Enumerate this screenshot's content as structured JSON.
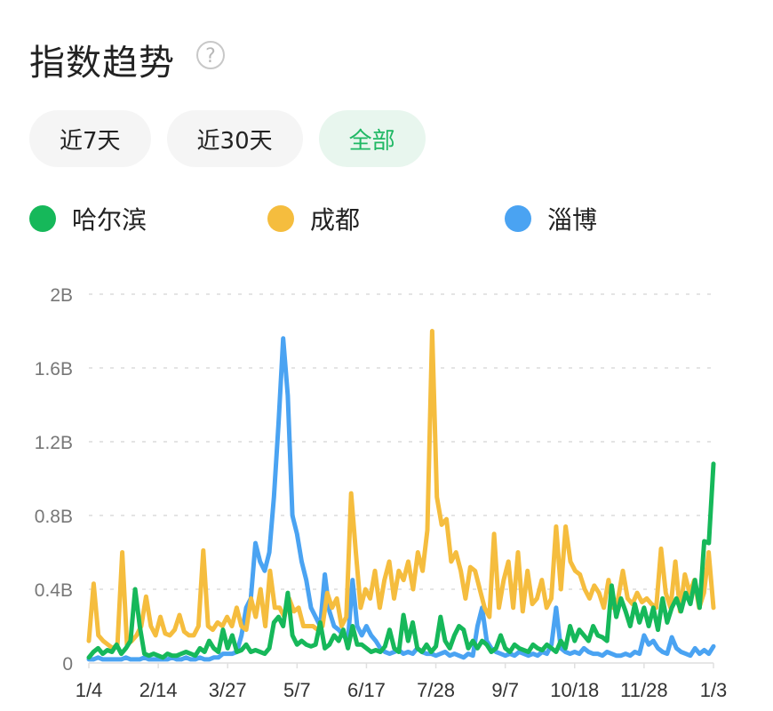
{
  "header": {
    "title": "指数趋势",
    "help_icon": "?"
  },
  "tabs": [
    {
      "label": "近7天",
      "active": false
    },
    {
      "label": "近30天",
      "active": false
    },
    {
      "label": "全部",
      "active": true
    }
  ],
  "legend": [
    {
      "label": "哈尔滨",
      "color": "#16b85a"
    },
    {
      "label": "成都",
      "color": "#f5bd3e"
    },
    {
      "label": "淄博",
      "color": "#4aa3f2"
    }
  ],
  "chart_data": {
    "type": "line",
    "title": "指数趋势",
    "xlabel": "",
    "ylabel": "",
    "ylim": [
      0,
      2000000000
    ],
    "y_ticks": [
      "0",
      "0.4B",
      "0.8B",
      "1.2B",
      "1.6B",
      "2B"
    ],
    "x_ticks": [
      "1/4",
      "2/14",
      "3/27",
      "5/7",
      "6/17",
      "7/28",
      "9/7",
      "10/18",
      "11/28",
      "1/3"
    ],
    "grid": true,
    "legend_position": "top",
    "series": [
      {
        "name": "哈尔滨",
        "color": "#16b85a",
        "values_B": [
          0.03,
          0.06,
          0.08,
          0.05,
          0.07,
          0.06,
          0.1,
          0.05,
          0.08,
          0.12,
          0.4,
          0.2,
          0.05,
          0.04,
          0.05,
          0.04,
          0.03,
          0.05,
          0.04,
          0.04,
          0.05,
          0.06,
          0.05,
          0.04,
          0.08,
          0.06,
          0.12,
          0.08,
          0.06,
          0.18,
          0.08,
          0.15,
          0.06,
          0.07,
          0.1,
          0.06,
          0.07,
          0.06,
          0.05,
          0.08,
          0.22,
          0.25,
          0.2,
          0.38,
          0.15,
          0.1,
          0.12,
          0.1,
          0.09,
          0.1,
          0.22,
          0.08,
          0.1,
          0.15,
          0.12,
          0.18,
          0.08,
          0.2,
          0.1,
          0.1,
          0.08,
          0.06,
          0.07,
          0.06,
          0.09,
          0.18,
          0.08,
          0.06,
          0.26,
          0.12,
          0.22,
          0.08,
          0.06,
          0.1,
          0.06,
          0.09,
          0.25,
          0.12,
          0.08,
          0.15,
          0.2,
          0.18,
          0.08,
          0.12,
          0.08,
          0.12,
          0.1,
          0.06,
          0.08,
          0.15,
          0.08,
          0.06,
          0.1,
          0.08,
          0.07,
          0.06,
          0.1,
          0.08,
          0.07,
          0.1,
          0.08,
          0.06,
          0.12,
          0.08,
          0.2,
          0.12,
          0.18,
          0.15,
          0.12,
          0.2,
          0.15,
          0.14,
          0.12,
          0.42,
          0.25,
          0.35,
          0.28,
          0.2,
          0.32,
          0.22,
          0.3,
          0.2,
          0.3,
          0.18,
          0.35,
          0.22,
          0.3,
          0.35,
          0.28,
          0.38,
          0.32,
          0.45,
          0.3,
          0.66,
          0.65,
          1.08
        ]
      },
      {
        "name": "成都",
        "color": "#f5bd3e",
        "values_B": [
          0.12,
          0.43,
          0.15,
          0.12,
          0.1,
          0.08,
          0.1,
          0.6,
          0.1,
          0.12,
          0.15,
          0.2,
          0.36,
          0.2,
          0.15,
          0.25,
          0.16,
          0.15,
          0.18,
          0.26,
          0.17,
          0.15,
          0.15,
          0.2,
          0.61,
          0.2,
          0.18,
          0.22,
          0.2,
          0.25,
          0.2,
          0.3,
          0.2,
          0.18,
          0.35,
          0.25,
          0.4,
          0.2,
          0.5,
          0.3,
          0.3,
          0.25,
          0.35,
          0.28,
          0.3,
          0.2,
          0.2,
          0.2,
          0.18,
          0.2,
          0.38,
          0.3,
          0.35,
          0.2,
          0.25,
          0.92,
          0.6,
          0.3,
          0.4,
          0.35,
          0.5,
          0.3,
          0.45,
          0.55,
          0.35,
          0.5,
          0.45,
          0.55,
          0.4,
          0.6,
          0.5,
          0.72,
          1.8,
          0.9,
          0.75,
          0.78,
          0.55,
          0.6,
          0.5,
          0.35,
          0.52,
          0.5,
          0.4,
          0.3,
          0.25,
          0.7,
          0.3,
          0.45,
          0.55,
          0.3,
          0.6,
          0.28,
          0.5,
          0.32,
          0.35,
          0.45,
          0.3,
          0.35,
          0.74,
          0.4,
          0.74,
          0.55,
          0.5,
          0.48,
          0.4,
          0.35,
          0.42,
          0.38,
          0.3,
          0.45,
          0.3,
          0.35,
          0.5,
          0.35,
          0.32,
          0.38,
          0.33,
          0.35,
          0.32,
          0.3,
          0.62,
          0.38,
          0.3,
          0.55,
          0.28,
          0.48,
          0.38,
          0.45,
          0.3,
          0.38,
          0.6,
          0.3
        ]
      },
      {
        "name": "淄博",
        "color": "#4aa3f2",
        "values_B": [
          0.02,
          0.02,
          0.03,
          0.02,
          0.02,
          0.02,
          0.02,
          0.02,
          0.03,
          0.02,
          0.02,
          0.02,
          0.03,
          0.02,
          0.02,
          0.02,
          0.02,
          0.02,
          0.03,
          0.02,
          0.02,
          0.03,
          0.02,
          0.02,
          0.03,
          0.02,
          0.02,
          0.03,
          0.03,
          0.05,
          0.05,
          0.05,
          0.06,
          0.15,
          0.3,
          0.35,
          0.65,
          0.55,
          0.5,
          0.6,
          0.9,
          1.3,
          1.76,
          1.45,
          0.8,
          0.7,
          0.55,
          0.45,
          0.3,
          0.25,
          0.2,
          0.48,
          0.28,
          0.2,
          0.18,
          0.15,
          0.12,
          0.45,
          0.2,
          0.15,
          0.2,
          0.15,
          0.12,
          0.08,
          0.06,
          0.05,
          0.06,
          0.07,
          0.05,
          0.06,
          0.05,
          0.08,
          0.06,
          0.05,
          0.05,
          0.04,
          0.05,
          0.06,
          0.04,
          0.05,
          0.04,
          0.03,
          0.05,
          0.04,
          0.2,
          0.3,
          0.12,
          0.08,
          0.06,
          0.05,
          0.04,
          0.05,
          0.04,
          0.06,
          0.05,
          0.04,
          0.05,
          0.04,
          0.06,
          0.05,
          0.1,
          0.3,
          0.08,
          0.06,
          0.05,
          0.06,
          0.05,
          0.08,
          0.06,
          0.05,
          0.05,
          0.04,
          0.06,
          0.05,
          0.04,
          0.04,
          0.05,
          0.04,
          0.06,
          0.05,
          0.15,
          0.1,
          0.12,
          0.08,
          0.06,
          0.05,
          0.14,
          0.08,
          0.06,
          0.05,
          0.04,
          0.08,
          0.05,
          0.07,
          0.05,
          0.09
        ]
      }
    ]
  }
}
